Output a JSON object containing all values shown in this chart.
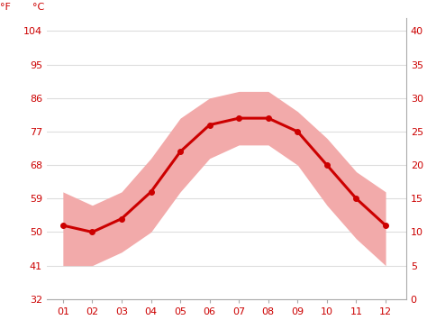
{
  "months": [
    1,
    2,
    3,
    4,
    5,
    6,
    7,
    8,
    9,
    10,
    11,
    12
  ],
  "month_labels": [
    "01",
    "02",
    "03",
    "04",
    "05",
    "06",
    "07",
    "08",
    "09",
    "10",
    "11",
    "12"
  ],
  "avg_temp_c": [
    11,
    10,
    12,
    16,
    22,
    26,
    27,
    27,
    25,
    20,
    15,
    11
  ],
  "max_temp_c": [
    16,
    14,
    16,
    21,
    27,
    30,
    31,
    31,
    28,
    24,
    19,
    16
  ],
  "min_temp_c": [
    5,
    5,
    7,
    10,
    16,
    21,
    23,
    23,
    20,
    14,
    9,
    5
  ],
  "yticks_c": [
    0,
    5,
    10,
    15,
    20,
    25,
    30,
    35,
    40
  ],
  "ylabels_c": [
    "0",
    "5",
    "10",
    "15",
    "20",
    "25",
    "30",
    "35",
    "40"
  ],
  "yticks_f_vals": [
    32,
    41,
    50,
    59,
    68,
    77,
    86,
    95,
    104
  ],
  "ylabels_f": [
    "32",
    "41",
    "50",
    "59",
    "68",
    "77",
    "86",
    "95",
    "104"
  ],
  "ylim_c": [
    0,
    42
  ],
  "xlim": [
    0.45,
    12.7
  ],
  "line_color": "#cc0000",
  "band_color": "#f2aaaa",
  "tick_color": "#cc0000",
  "grid_color": "#dddddd",
  "bg_color": "#ffffff",
  "label_f": "°F",
  "label_c": "°C",
  "line_width": 2.2,
  "marker_size": 4,
  "fontsize": 8
}
